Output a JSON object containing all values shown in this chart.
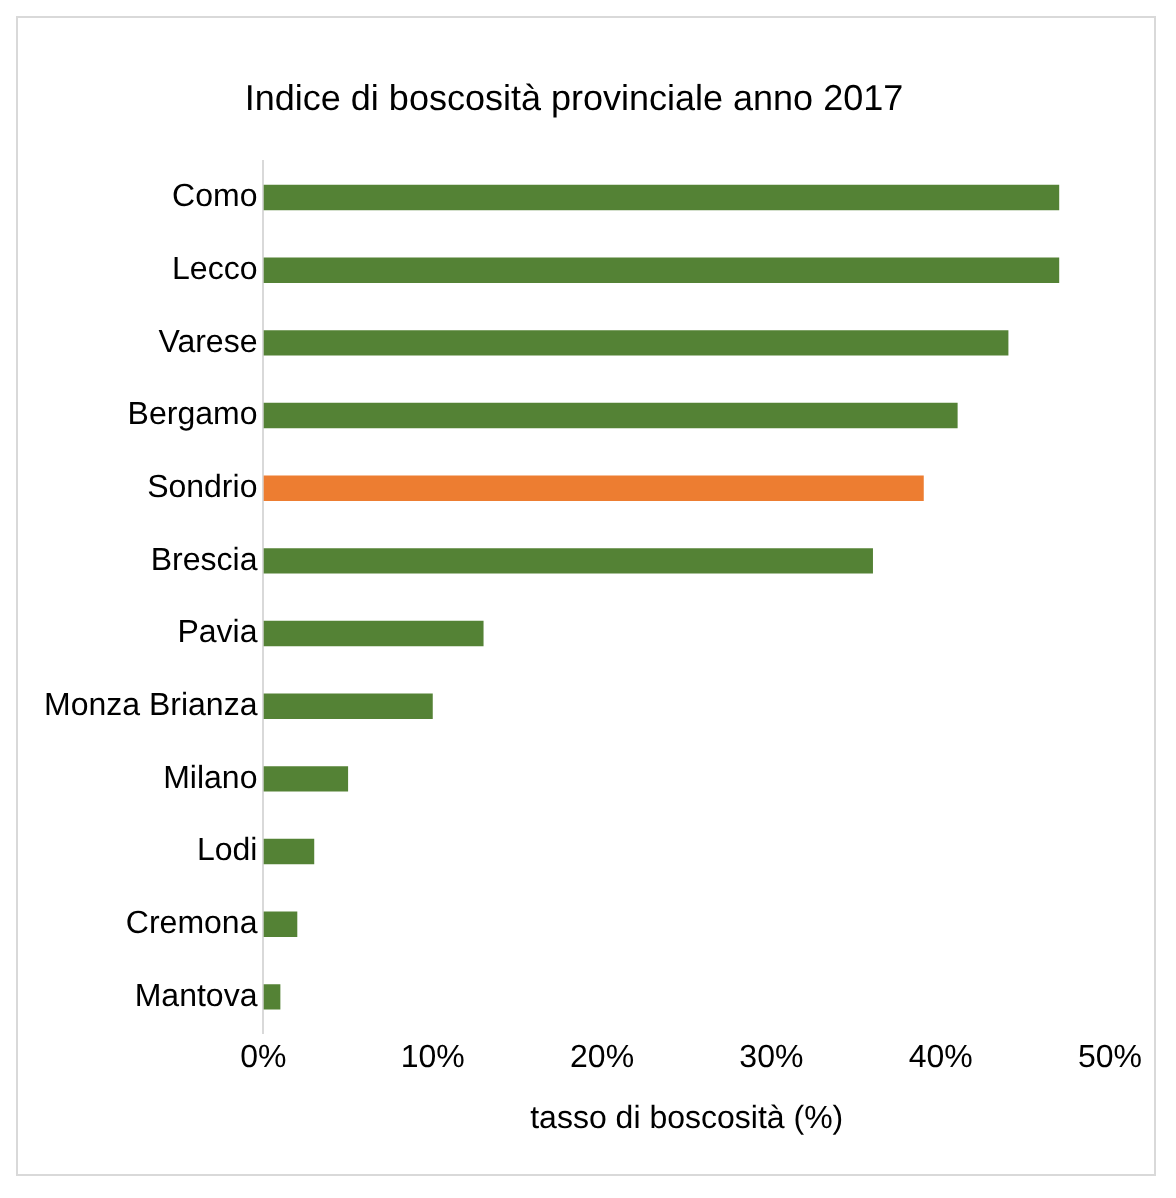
{
  "chart_data": {
    "type": "bar",
    "orientation": "horizontal",
    "title": "Indice di boscosità provinciale anno 2017",
    "xlabel": "tasso di boscosità (%)",
    "categories": [
      "Como",
      "Lecco",
      "Varese",
      "Bergamo",
      "Sondrio",
      "Brescia",
      "Pavia",
      "Monza Brianza",
      "Milano",
      "Lodi",
      "Cremona",
      "Mantova"
    ],
    "values": [
      47,
      47,
      44,
      41,
      39,
      36,
      13,
      10,
      5,
      3,
      2,
      1
    ],
    "colors": [
      "#548235",
      "#548235",
      "#548235",
      "#548235",
      "#ed7d31",
      "#548235",
      "#548235",
      "#548235",
      "#548235",
      "#548235",
      "#548235",
      "#548235"
    ],
    "xlim": [
      0,
      50
    ],
    "xticks": [
      {
        "value": 0,
        "label": "0%"
      },
      {
        "value": 10,
        "label": "10%"
      },
      {
        "value": 20,
        "label": "20%"
      },
      {
        "value": 30,
        "label": "30%"
      },
      {
        "value": 40,
        "label": "40%"
      },
      {
        "value": 50,
        "label": "50%"
      }
    ],
    "grid": false,
    "legend": false
  }
}
